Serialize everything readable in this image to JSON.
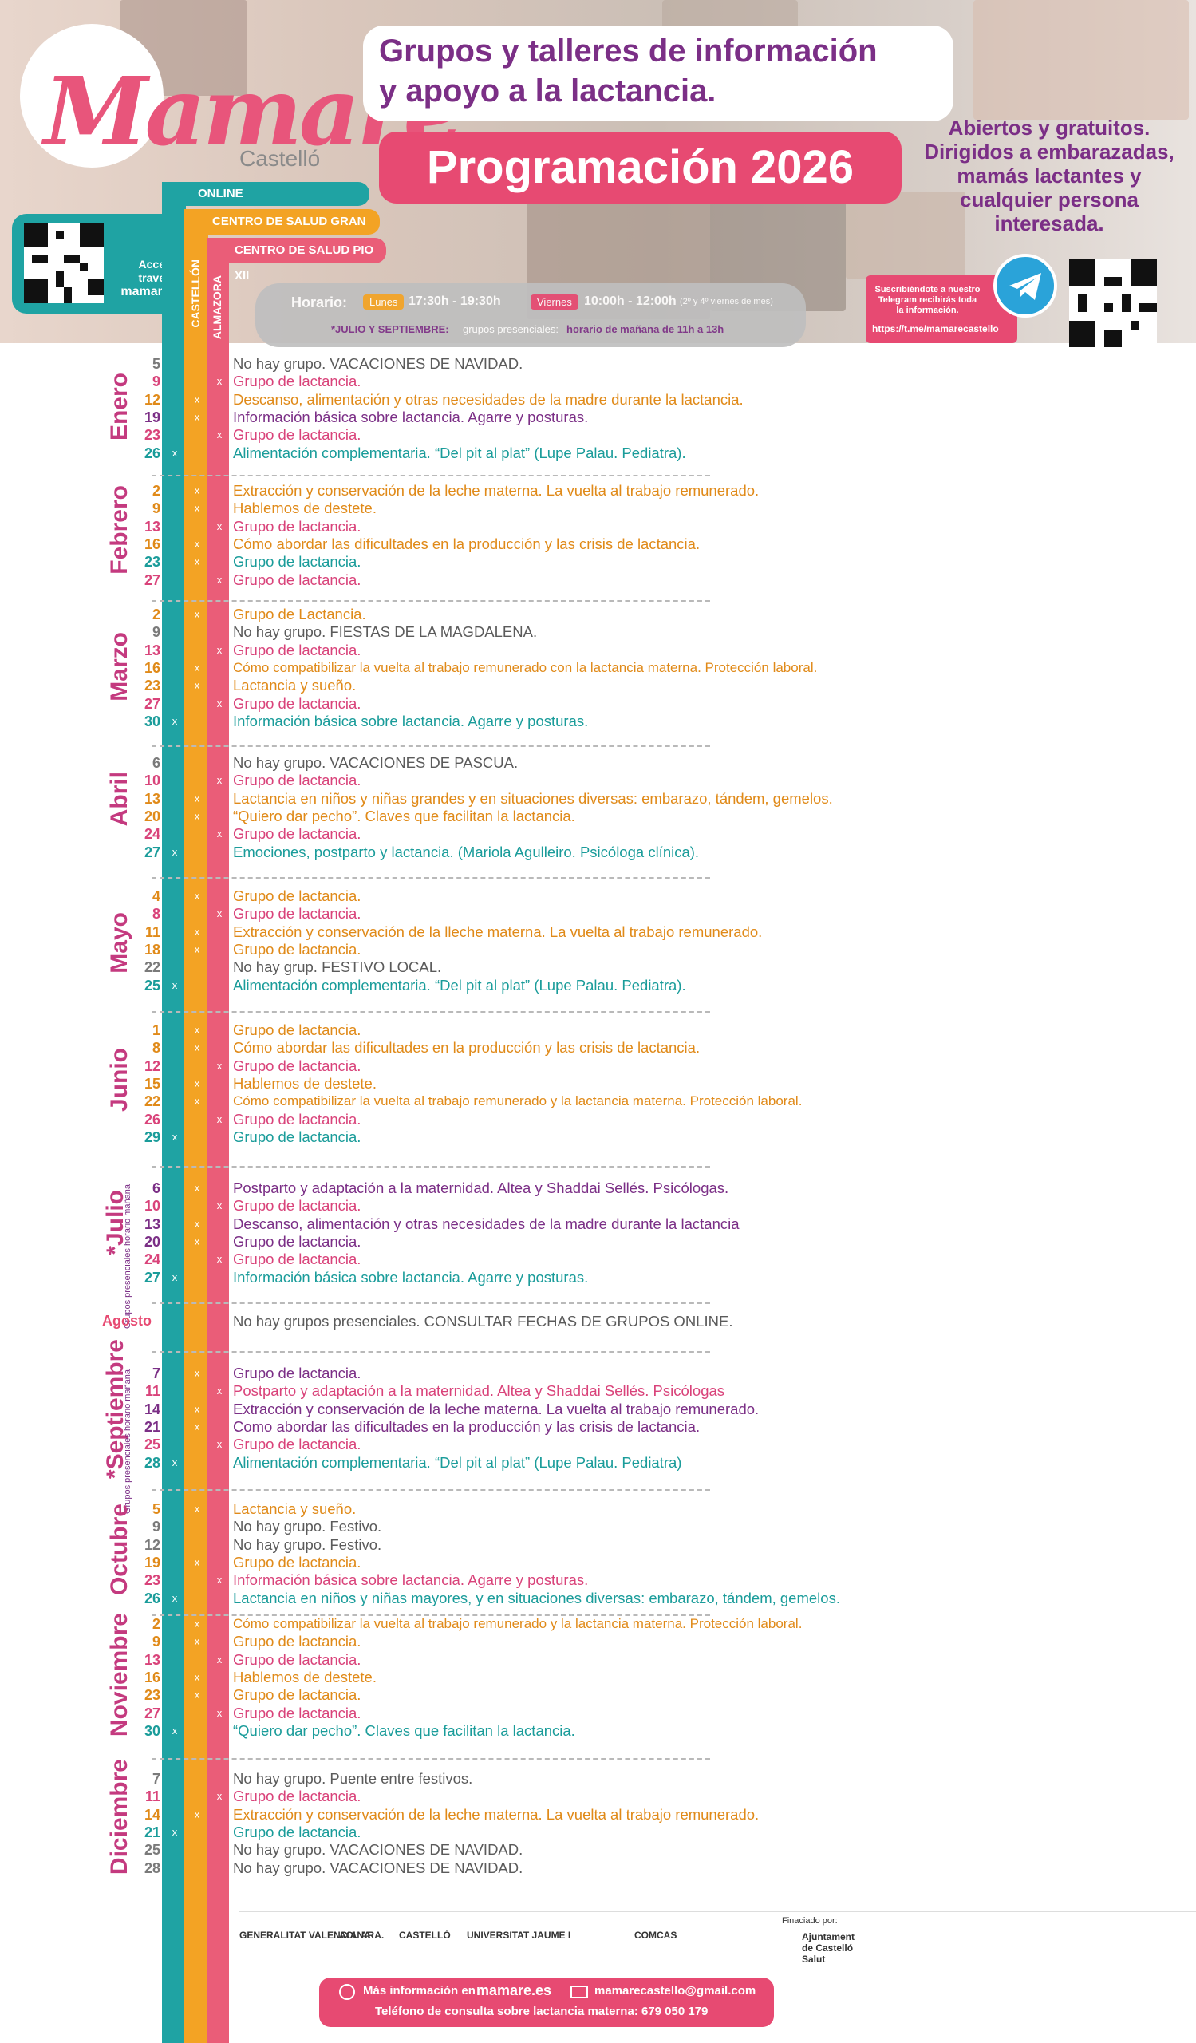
{
  "colors": {
    "online": "#1fa3a3",
    "castellon": "#f3a324",
    "almazora": "#ea5d78",
    "purple": "#7b2f86",
    "gray": "#4d4d4d",
    "pink": "#e74a72",
    "greytext": "#555555",
    "orange": "#e08a19",
    "magenta": "#d9437a",
    "teal": "#1a9c9a",
    "violet": "#7b2f86",
    "month": "#c43a7f"
  },
  "header": {
    "logo": "Mamare",
    "logo_sub": "Castelló",
    "title_line1": "Grupos y talleres de información",
    "title_line2": "y apoyo a la lactancia.",
    "programacion": "Programación 2026",
    "open_text": "Abiertos y gratuitos. Dirigidos a embarazadas, mamás lactantes y cualquier persona interesada.",
    "web_prompt": "Accede a través de",
    "web": "mamare.es",
    "horario_label": "Horario:",
    "lunes": "Lunes",
    "lunes_time": "17:30h - 19:30h",
    "viernes": "Viernes",
    "viernes_time": "10:00h - 12:00h",
    "viernes_note": "(2º y 4º viernes de mes)",
    "summer_label": "*JULIO Y SEPTIEMBRE:",
    "summer_mid": "grupos presenciales:",
    "summer_text": "horario de mañana de 11h a 13h",
    "telegram_text": "Suscribiéndote a nuestro Telegram recibirás toda la información.",
    "telegram_link": "https://t.me/mamarecastello"
  },
  "columns": {
    "online": "ONLINE",
    "castellon": "CENTRO DE SALUD GRAN VIA",
    "almazora": "CENTRO DE SALUD PIO XII",
    "castellon_v": "CASTELLÓN",
    "almazora_v": "ALMAZORA"
  },
  "months": [
    {
      "name": "Enero",
      "entries": [
        {
          "day": "5",
          "col": "",
          "c": "gray",
          "text": "No hay grupo. VACACIONES DE NAVIDAD."
        },
        {
          "day": "9",
          "col": "a",
          "c": "magenta",
          "text": "Grupo de lactancia."
        },
        {
          "day": "12",
          "col": "c",
          "c": "orange",
          "text": "Descanso, alimentación y otras necesidades de la madre durante la lactancia."
        },
        {
          "day": "19",
          "col": "c",
          "c": "violet",
          "text": "Información básica sobre lactancia. Agarre y posturas."
        },
        {
          "day": "23",
          "col": "a",
          "c": "magenta",
          "text": "Grupo de lactancia."
        },
        {
          "day": "26",
          "col": "o",
          "c": "teal",
          "text": "Alimentación complementaria. “Del pit al plat” (Lupe Palau. Pediatra)."
        }
      ]
    },
    {
      "name": "Febrero",
      "entries": [
        {
          "day": "2",
          "col": "c",
          "c": "orange",
          "text": "Extracción y conservación de la leche materna. La vuelta al trabajo remunerado."
        },
        {
          "day": "9",
          "col": "c",
          "c": "orange",
          "text": "Hablemos de destete."
        },
        {
          "day": "13",
          "col": "a",
          "c": "magenta",
          "text": "Grupo de lactancia."
        },
        {
          "day": "16",
          "col": "c",
          "c": "orange",
          "text": "Cómo abordar las dificultades en la producción y las crisis de lactancia."
        },
        {
          "day": "23",
          "col": "c",
          "c": "teal",
          "text": "Grupo de lactancia."
        },
        {
          "day": "27",
          "col": "a",
          "c": "magenta",
          "text": "Grupo de lactancia."
        }
      ]
    },
    {
      "name": "Marzo",
      "entries": [
        {
          "day": "2",
          "col": "c",
          "c": "orange",
          "text": "Grupo de Lactancia."
        },
        {
          "day": "9",
          "col": "",
          "c": "gray",
          "text": "No hay grupo. FIESTAS DE LA MAGDALENA."
        },
        {
          "day": "13",
          "col": "a",
          "c": "magenta",
          "text": "Grupo de lactancia."
        },
        {
          "day": "16",
          "col": "c",
          "c": "orange",
          "text": "Cómo compatibilizar la vuelta al trabajo remunerado con la lactancia materna. Protección laboral."
        },
        {
          "day": "23",
          "col": "c",
          "c": "orange",
          "text": "Lactancia y sueño."
        },
        {
          "day": "27",
          "col": "a",
          "c": "magenta",
          "text": "Grupo de lactancia."
        },
        {
          "day": "30",
          "col": "o",
          "c": "teal",
          "text": "Información básica sobre lactancia. Agarre y posturas."
        }
      ]
    },
    {
      "name": "Abril",
      "entries": [
        {
          "day": "6",
          "col": "",
          "c": "gray",
          "text": "No hay grupo. VACACIONES DE PASCUA."
        },
        {
          "day": "10",
          "col": "a",
          "c": "magenta",
          "text": "Grupo de lactancia."
        },
        {
          "day": "13",
          "col": "c",
          "c": "orange",
          "text": "Lactancia en niños y niñas grandes y en situaciones diversas: embarazo, tándem, gemelos."
        },
        {
          "day": "20",
          "col": "c",
          "c": "orange",
          "text": "“Quiero dar pecho”. Claves que facilitan la lactancia."
        },
        {
          "day": "24",
          "col": "a",
          "c": "magenta",
          "text": "Grupo de lactancia."
        },
        {
          "day": "27",
          "col": "o",
          "c": "teal",
          "text": "Emociones, postparto y lactancia. (Mariola Agulleiro. Psicóloga clínica)."
        }
      ]
    },
    {
      "name": "Mayo",
      "entries": [
        {
          "day": "4",
          "col": "c",
          "c": "orange",
          "text": "Grupo de lactancia."
        },
        {
          "day": "8",
          "col": "a",
          "c": "magenta",
          "text": "Grupo de lactancia."
        },
        {
          "day": "11",
          "col": "c",
          "c": "orange",
          "text": "Extracción y conservación de la lleche materna. La vuelta al trabajo remunerado."
        },
        {
          "day": "18",
          "col": "c",
          "c": "orange",
          "text": "Grupo de lactancia."
        },
        {
          "day": "22",
          "col": "",
          "c": "gray",
          "text": "No hay grup. FESTIVO LOCAL."
        },
        {
          "day": "25",
          "col": "o",
          "c": "teal",
          "text": "Alimentación complementaria. “Del pit al plat” (Lupe Palau. Pediatra)."
        }
      ]
    },
    {
      "name": "Junio",
      "entries": [
        {
          "day": "1",
          "col": "c",
          "c": "orange",
          "text": "Grupo de lactancia."
        },
        {
          "day": "8",
          "col": "c",
          "c": "orange",
          "text": "Cómo abordar las dificultades en la producción y las crisis de lactancia."
        },
        {
          "day": "12",
          "col": "a",
          "c": "magenta",
          "text": "Grupo de lactancia."
        },
        {
          "day": "15",
          "col": "c",
          "c": "orange",
          "text": "Hablemos de destete."
        },
        {
          "day": "22",
          "col": "c",
          "c": "orange",
          "text": "Cómo compatibilizar la vuelta al trabajo remunerado y la lactancia materna. Protección laboral."
        },
        {
          "day": "26",
          "col": "a",
          "c": "magenta",
          "text": "Grupo de lactancia."
        },
        {
          "day": "29",
          "col": "o",
          "c": "teal",
          "text": "Grupo de lactancia."
        }
      ]
    },
    {
      "name": "*Julio",
      "note": "Grupos presenciales horario mañana",
      "entries": [
        {
          "day": "6",
          "col": "c",
          "c": "violet",
          "text": "Postparto y adaptación a la maternidad. Altea y Shaddai Sellés. Psicólogas."
        },
        {
          "day": "10",
          "col": "a",
          "c": "magenta",
          "text": "Grupo de lactancia."
        },
        {
          "day": "13",
          "col": "c",
          "c": "violet",
          "text": "Descanso, alimentación y otras necesidades de la madre durante la lactancia"
        },
        {
          "day": "20",
          "col": "c",
          "c": "violet",
          "text": "Grupo de lactancia."
        },
        {
          "day": "24",
          "col": "a",
          "c": "magenta",
          "text": "Grupo de lactancia."
        },
        {
          "day": "27",
          "col": "o",
          "c": "teal",
          "text": "Información básica sobre lactancia. Agarre y posturas."
        }
      ]
    },
    {
      "name": "Agosto",
      "entries": [
        {
          "day": "",
          "col": "",
          "c": "gray",
          "text": "No hay grupos presenciales. CONSULTAR FECHAS DE GRUPOS ONLINE."
        }
      ]
    },
    {
      "name": "*Septiembre",
      "note": "Grupos presenciales horario mañana",
      "entries": [
        {
          "day": "7",
          "col": "c",
          "c": "violet",
          "text": "Grupo de lactancia."
        },
        {
          "day": "11",
          "col": "a",
          "c": "magenta",
          "text": "Postparto y adaptación a la maternidad. Altea y Shaddai Sellés. Psicólogas"
        },
        {
          "day": "14",
          "col": "c",
          "c": "violet",
          "text": "Extracción y conservación de la leche materna. La vuelta al trabajo remunerado."
        },
        {
          "day": "21",
          "col": "c",
          "c": "violet",
          "text": "Como abordar las dificultades en la producción y las crisis de lactancia."
        },
        {
          "day": "25",
          "col": "a",
          "c": "magenta",
          "text": "Grupo de lactancia."
        },
        {
          "day": "28",
          "col": "o",
          "c": "teal",
          "text": "Alimentación complementaria. “Del pit al plat” (Lupe Palau. Pediatra)"
        }
      ]
    },
    {
      "name": "Octubre",
      "entries": [
        {
          "day": "5",
          "col": "c",
          "c": "orange",
          "text": "Lactancia y sueño."
        },
        {
          "day": "9",
          "col": "",
          "c": "gray",
          "text": "No hay grupo. Festivo."
        },
        {
          "day": "12",
          "col": "",
          "c": "gray",
          "text": "No hay grupo. Festivo."
        },
        {
          "day": "19",
          "col": "c",
          "c": "orange",
          "text": "Grupo de lactancia."
        },
        {
          "day": "23",
          "col": "a",
          "c": "magenta",
          "text": "Información básica sobre lactancia. Agarre y posturas."
        },
        {
          "day": "26",
          "col": "o",
          "c": "teal",
          "text": "Lactancia en niños y niñas mayores, y en situaciones diversas: embarazo, tándem, gemelos."
        }
      ]
    },
    {
      "name": "Noviembre",
      "entries": [
        {
          "day": "2",
          "col": "c",
          "c": "orange",
          "text": "Cómo compatibilizar la vuelta al trabajo remunerado y la lactancia materna. Protección laboral."
        },
        {
          "day": "9",
          "col": "c",
          "c": "orange",
          "text": "Grupo de lactancia."
        },
        {
          "day": "13",
          "col": "a",
          "c": "magenta",
          "text": "Grupo de lactancia."
        },
        {
          "day": "16",
          "col": "c",
          "c": "orange",
          "text": "Hablemos de destete."
        },
        {
          "day": "23",
          "col": "c",
          "c": "orange",
          "text": "Grupo de lactancia."
        },
        {
          "day": "27",
          "col": "a",
          "c": "magenta",
          "text": "Grupo de lactancia."
        },
        {
          "day": "30",
          "col": "o",
          "c": "teal",
          "text": "“Quiero dar pecho”. Claves que facilitan la lactancia."
        }
      ]
    },
    {
      "name": "Diciembre",
      "entries": [
        {
          "day": "7",
          "col": "",
          "c": "gray",
          "text": "No hay grupo. Puente entre festivos."
        },
        {
          "day": "11",
          "col": "a",
          "c": "magenta",
          "text": "Grupo de lactancia."
        },
        {
          "day": "14",
          "col": "c",
          "c": "orange",
          "text": "Extracción y conservación de la leche materna. La vuelta al trabajo remunerado."
        },
        {
          "day": "21",
          "col": "o",
          "c": "teal",
          "text": "Grupo de lactancia."
        },
        {
          "day": "25",
          "col": "",
          "c": "gray",
          "text": "No hay grupo. VACACIONES DE NAVIDAD."
        },
        {
          "day": "28",
          "col": "",
          "c": "gray",
          "text": "No hay grupo. VACACIONES DE NAVIDAD."
        }
      ]
    }
  ],
  "footer": {
    "financed": "Finaciado por:",
    "logos": [
      "GENERALITAT VALENCIANA",
      "ACI. ARA.",
      "CASTELLÓ",
      "UNIVERSITAT JAUME I",
      "COMCAS",
      "Ajuntament de Castelló Salut"
    ],
    "more_info": "Más información en",
    "web": "mamare.es",
    "email": "mamarecastello@gmail.com",
    "phone": "Teléfono de consulta sobre lactancia materna:  679 050 179"
  }
}
